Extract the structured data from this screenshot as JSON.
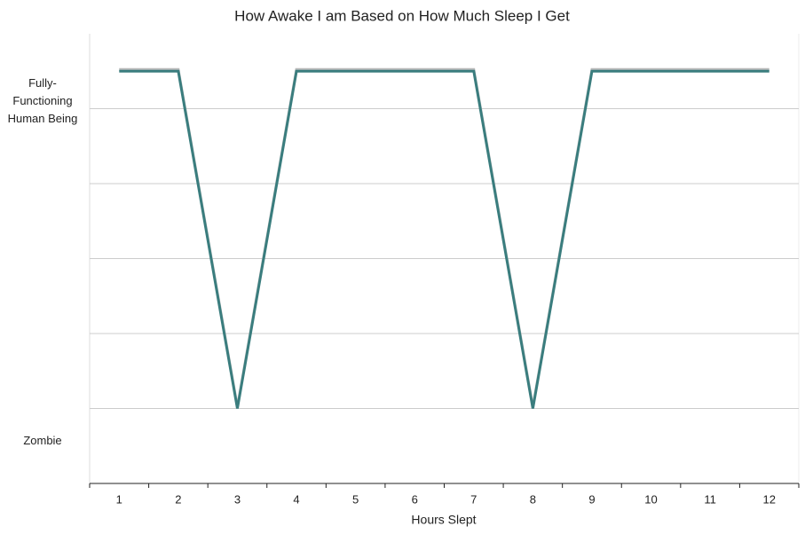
{
  "chart_data": {
    "type": "line",
    "title": "How Awake I am Based on How Much Sleep I Get",
    "x_label": "Hours Slept",
    "x": [
      1,
      2,
      3,
      4,
      5,
      6,
      7,
      8,
      9,
      10,
      11,
      12
    ],
    "values": [
      5.5,
      5.5,
      1,
      5.5,
      5.5,
      5.5,
      5.5,
      1,
      5.5,
      5.5,
      5.5,
      5.5
    ],
    "color": "#3a7d7e",
    "xlim": [
      0.5,
      12.5
    ],
    "xticks": [
      1,
      2,
      3,
      4,
      5,
      6,
      7,
      8,
      9,
      10,
      11,
      12
    ],
    "ylim": [
      0,
      6
    ],
    "yticks": [
      {
        "value": 5.1,
        "label": "Fully-Functioning Human Being"
      },
      {
        "value": 0.57,
        "label": "Zombie"
      }
    ],
    "ygrid": [
      1,
      2,
      3,
      4,
      5
    ]
  }
}
